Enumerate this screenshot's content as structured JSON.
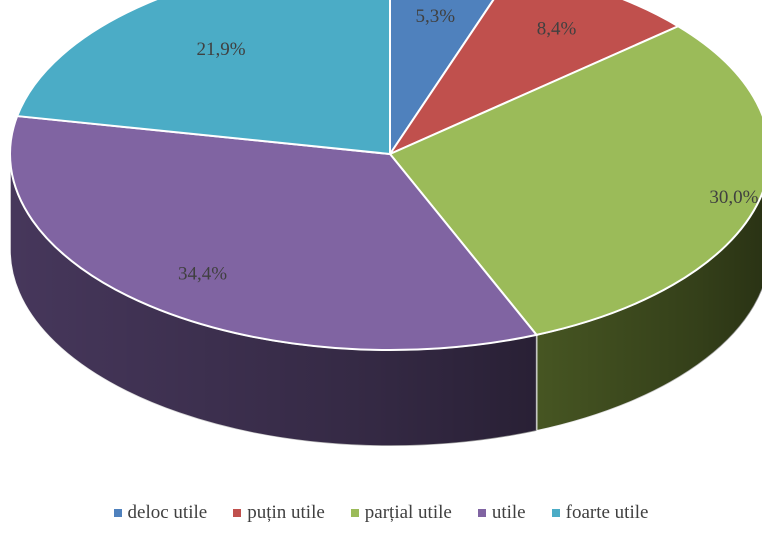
{
  "chart_data": {
    "type": "pie",
    "title": "",
    "categories": [
      "deloc utile",
      "puțin utile",
      "parțial utile",
      "utile",
      "foarte utile"
    ],
    "values": [
      5.3,
      8.4,
      30.0,
      34.4,
      21.9
    ],
    "data_labels": [
      "5,3%",
      "8,4%",
      "30,0%",
      "34,4%",
      "21,9%"
    ],
    "colors": [
      "#4F81BD",
      "#C0504D",
      "#9BBB59",
      "#8064A2",
      "#4BACC6"
    ],
    "side_colors": [
      "#2E4B70",
      "#6E2E2C",
      "#4A5A24",
      "#4A3A60",
      "#2C6474"
    ],
    "legend_position": "bottom",
    "style": "3d"
  }
}
